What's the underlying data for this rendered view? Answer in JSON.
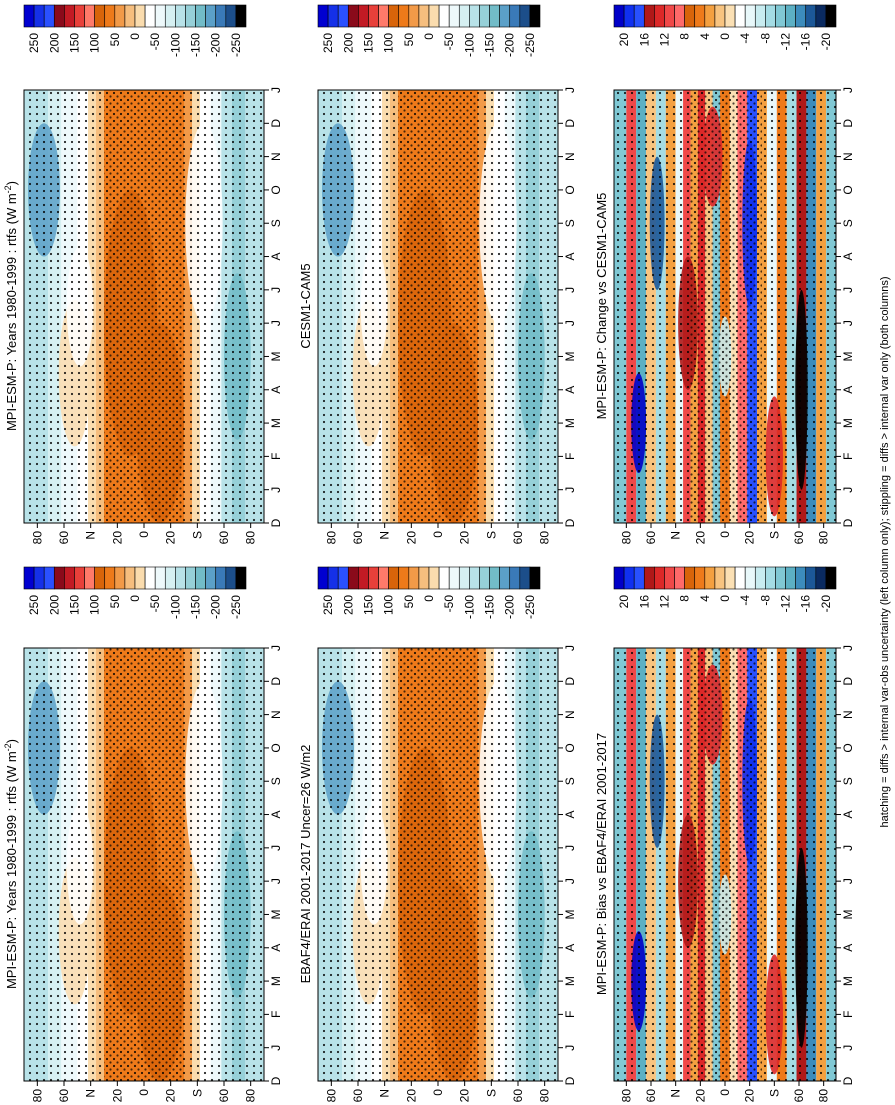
{
  "figure": {
    "footnote": "hatching = diffs > internal var-obs uncertainty (left column only); stippling = diffs > internal var only (both columns)"
  },
  "chart_data": [
    {
      "type": "heatmap",
      "id": "p1",
      "title": "MPI-ESM-P: Years 1980-1999 : rtfs (W m",
      "title_sup": "-2",
      "title_end": ")",
      "months": [
        "D",
        "J",
        "F",
        "M",
        "A",
        "M",
        "J",
        "J",
        "A",
        "S",
        "O",
        "N",
        "D",
        "J"
      ],
      "lat_labels": [
        "80",
        "60",
        "N",
        "20",
        "0",
        "20",
        "S",
        "60",
        "80"
      ],
      "lat_values": [
        80,
        60,
        40,
        20,
        0,
        -20,
        -40,
        -60,
        -80
      ],
      "palette": "full",
      "colorbar_labels": [
        "250",
        "200",
        "150",
        "100",
        "50",
        "0",
        "-50",
        "-100",
        "-150",
        "-200",
        "-250"
      ]
    },
    {
      "type": "heatmap",
      "id": "p2",
      "title": "MPI-ESM-P: Years 1980-1999 : rtfs (W m",
      "title_sup": "-2",
      "title_end": ")",
      "months": [
        "D",
        "J",
        "F",
        "M",
        "A",
        "M",
        "J",
        "J",
        "A",
        "S",
        "O",
        "N",
        "D",
        "J"
      ],
      "lat_labels": [
        "80",
        "60",
        "N",
        "20",
        "0",
        "20",
        "S",
        "60",
        "80"
      ],
      "lat_values": [
        80,
        60,
        40,
        20,
        0,
        -20,
        -40,
        -60,
        -80
      ],
      "palette": "full",
      "colorbar_labels": [
        "250",
        "200",
        "150",
        "100",
        "50",
        "0",
        "-50",
        "-100",
        "-150",
        "-200",
        "-250"
      ]
    },
    {
      "type": "heatmap",
      "id": "p3",
      "title": "EBAF4/ERAI 2001-2017 Uncer=26 W/m2",
      "title_sup": "",
      "title_end": "",
      "months": [
        "D",
        "J",
        "F",
        "M",
        "A",
        "M",
        "J",
        "J",
        "A",
        "S",
        "O",
        "N",
        "D",
        "J"
      ],
      "lat_labels": [
        "80",
        "60",
        "N",
        "20",
        "0",
        "20",
        "S",
        "60",
        "80"
      ],
      "lat_values": [
        80,
        60,
        40,
        20,
        0,
        -20,
        -40,
        -60,
        -80
      ],
      "palette": "full",
      "colorbar_labels": [
        "250",
        "200",
        "150",
        "100",
        "50",
        "0",
        "-50",
        "-100",
        "-150",
        "-200",
        "-250"
      ]
    },
    {
      "type": "heatmap",
      "id": "p4",
      "title": "CESM1-CAM5",
      "title_sup": "",
      "title_end": "",
      "months": [
        "D",
        "J",
        "F",
        "M",
        "A",
        "M",
        "J",
        "J",
        "A",
        "S",
        "O",
        "N",
        "D",
        "J"
      ],
      "lat_labels": [
        "80",
        "60",
        "N",
        "20",
        "0",
        "20",
        "S",
        "60",
        "80"
      ],
      "lat_values": [
        80,
        60,
        40,
        20,
        0,
        -20,
        -40,
        -60,
        -80
      ],
      "palette": "full",
      "colorbar_labels": [
        "250",
        "200",
        "150",
        "100",
        "50",
        "0",
        "-50",
        "-100",
        "-150",
        "-200",
        "-250"
      ]
    },
    {
      "type": "heatmap",
      "id": "p5",
      "title": "MPI-ESM-P: Bias vs EBAF4/ERAI 2001-2017",
      "title_sup": "",
      "title_end": "",
      "months": [
        "D",
        "J",
        "F",
        "M",
        "A",
        "M",
        "J",
        "J",
        "A",
        "S",
        "O",
        "N",
        "D",
        "J"
      ],
      "lat_labels": [
        "80",
        "60",
        "N",
        "20",
        "0",
        "20",
        "S",
        "60",
        "80"
      ],
      "lat_values": [
        80,
        60,
        40,
        20,
        0,
        -20,
        -40,
        -60,
        -80
      ],
      "palette": "diff",
      "colorbar_labels": [
        "20",
        "16",
        "12",
        "8",
        "4",
        "0",
        "-4",
        "-8",
        "-12",
        "-16",
        "-20"
      ]
    },
    {
      "type": "heatmap",
      "id": "p6",
      "title": "MPI-ESM-P: Change vs CESM1-CAM5",
      "title_sup": "",
      "title_end": "",
      "months": [
        "D",
        "J",
        "F",
        "M",
        "A",
        "M",
        "J",
        "J",
        "A",
        "S",
        "O",
        "N",
        "D",
        "J"
      ],
      "lat_labels": [
        "80",
        "60",
        "N",
        "20",
        "0",
        "20",
        "S",
        "60",
        "80"
      ],
      "lat_values": [
        80,
        60,
        40,
        20,
        0,
        -20,
        -40,
        -60,
        -80
      ],
      "palette": "diff",
      "colorbar_labels": [
        "20",
        "16",
        "12",
        "8",
        "4",
        "0",
        "-4",
        "-8",
        "-12",
        "-16",
        "-20"
      ]
    }
  ],
  "colors": {
    "full_palette": [
      "#0000d0",
      "#1530e8",
      "#2a50ff",
      "#8a0a1a",
      "#c21a24",
      "#e8403a",
      "#ff7a6a",
      "#d8640a",
      "#ee7a1a",
      "#f29a48",
      "#f6be7e",
      "#fadcae",
      "#ffffff",
      "#eef9fb",
      "#d6f0f2",
      "#b8e2e8",
      "#96d0d8",
      "#72bcc8",
      "#5ba0c8",
      "#3a7ab8",
      "#1c4e8a",
      "#000000"
    ],
    "diff_palette": [
      "#0000c8",
      "#1030f0",
      "#2850ff",
      "#b01818",
      "#dc2828",
      "#f04848",
      "#ff6a6a",
      "#d8640a",
      "#ee7a1a",
      "#f4a040",
      "#f8c480",
      "#fbe0b4",
      "#ffffff",
      "#e8f8fa",
      "#c8ecf0",
      "#a4dce4",
      "#80c8d4",
      "#5cb0c4",
      "#3c8cbc",
      "#1c5898",
      "#0a2a60",
      "#000000"
    ]
  }
}
